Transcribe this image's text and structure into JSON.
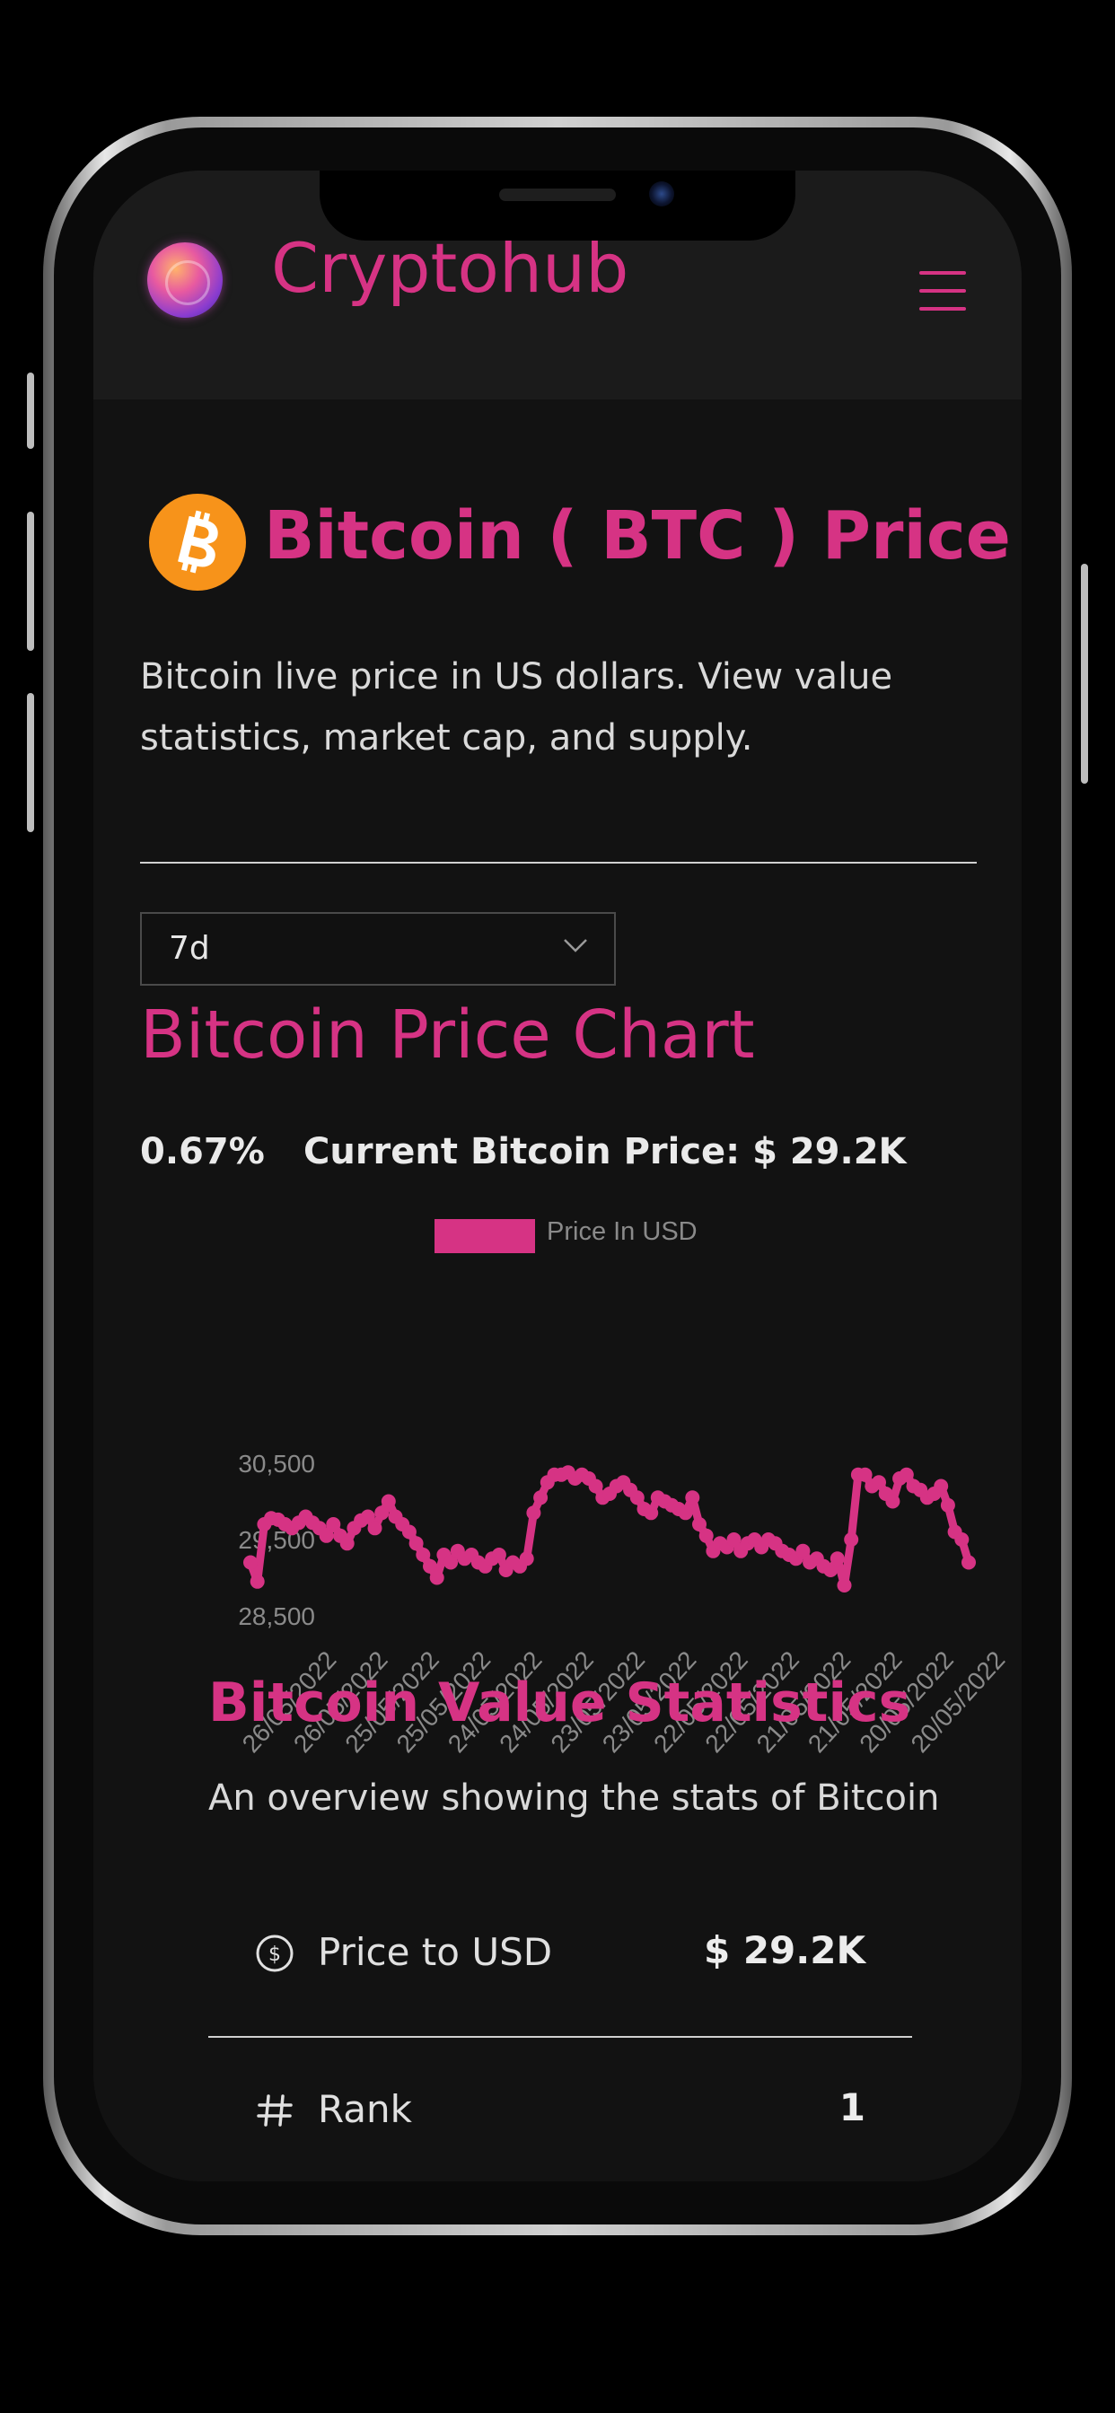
{
  "app": {
    "brand": "Cryptohub",
    "colors": {
      "accent": "#d63384",
      "background": "#121212",
      "header": "#1b1b1b",
      "bitcoin": "#f7931a"
    }
  },
  "page": {
    "title": "Bitcoin ( BTC ) Price",
    "description": "Bitcoin live price in US dollars. View value statistics, market cap, and supply."
  },
  "time_period": {
    "selected": "7d"
  },
  "chart_section": {
    "title": "Bitcoin Price Chart",
    "change": "0.67%",
    "current_price": "Current Bitcoin Price: $ 29.2K"
  },
  "chart_data": {
    "type": "line",
    "legend": "Price In USD",
    "series": [
      {
        "name": "Price In USD",
        "values": [
          29200,
          28950,
          29700,
          29780,
          29760,
          29700,
          29650,
          29720,
          29800,
          29720,
          29650,
          29550,
          29700,
          29550,
          29450,
          29650,
          29750,
          29800,
          29650,
          29850,
          30000,
          29800,
          29700,
          29600,
          29450,
          29300,
          29150,
          29000,
          29300,
          29200,
          29350,
          29250,
          29300,
          29200,
          29150,
          29250,
          29300,
          29100,
          29200,
          29150,
          29250,
          29850,
          30050,
          30250,
          30350,
          30350,
          30380,
          30300,
          30350,
          30300,
          30200,
          30050,
          30100,
          30200,
          30250,
          30150,
          30050,
          29900,
          29850,
          30050,
          30000,
          29950,
          29900,
          29850,
          30050,
          29700,
          29550,
          29350,
          29450,
          29400,
          29500,
          29350,
          29450,
          29500,
          29400,
          29500,
          29450,
          29350,
          29300,
          29250,
          29350,
          29200,
          29250,
          29150,
          29100,
          29250,
          28900,
          29500,
          30350,
          30350,
          30200,
          30250,
          30100,
          30000,
          30300,
          30350,
          30200,
          30150,
          30050,
          30100,
          30200,
          29950,
          29600,
          29500,
          29200
        ]
      }
    ],
    "y_ticks": [
      "30,500",
      "29,500",
      "28,500"
    ],
    "ylim": [
      28500,
      30500
    ],
    "x_ticks": [
      "26/05/2022",
      "26/05/2022",
      "25/05/2022",
      "25/05/2022",
      "24/05/2022",
      "24/05/2022",
      "23/05/2022",
      "23/05/2022",
      "22/05/2022",
      "22/05/2022",
      "21/05/2022",
      "21/05/2022",
      "20/05/2022",
      "20/05/2022"
    ],
    "grid": false
  },
  "stats": {
    "title": "Bitcoin Value Statistics",
    "description": "An overview showing the stats of Bitcoin",
    "rows": [
      {
        "icon": "dollar-circle-icon",
        "label": "Price to USD",
        "value": "$ 29.2K"
      },
      {
        "icon": "hash-icon",
        "label": "Rank",
        "value": "1"
      }
    ]
  }
}
